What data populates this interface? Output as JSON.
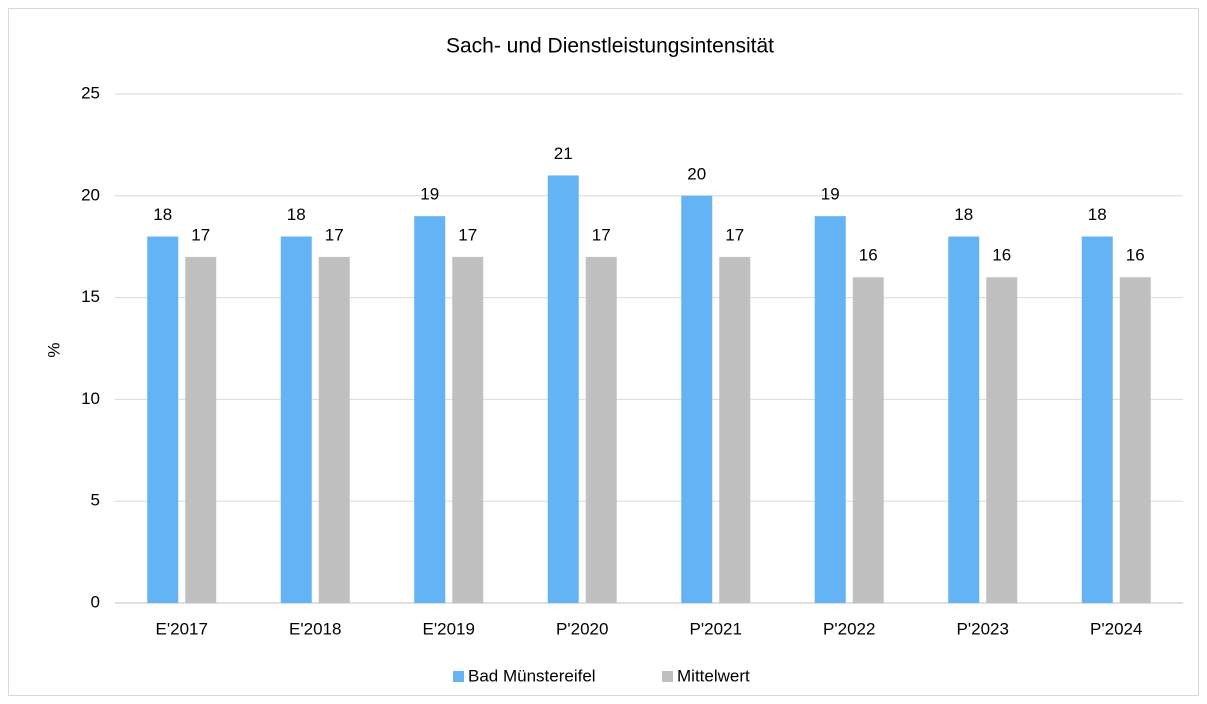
{
  "chart_data": {
    "type": "bar",
    "title": "Sach- und Dienstleistungsintensität",
    "y_label": "%",
    "categories": [
      "E'2017",
      "E'2018",
      "E'2019",
      "P'2020",
      "P'2021",
      "P'2022",
      "P'2023",
      "P'2024"
    ],
    "series": [
      {
        "name": "Bad Münstereifel",
        "color": "#63b3f5",
        "values": [
          18,
          18,
          19,
          21,
          20,
          19,
          18,
          18
        ]
      },
      {
        "name": "Mittelwert",
        "color": "#c0c0c0",
        "values": [
          17,
          17,
          17,
          17,
          17,
          16,
          16,
          16
        ]
      }
    ],
    "ylim": [
      0,
      25
    ],
    "yticks": [
      0,
      5,
      10,
      15,
      20,
      25
    ],
    "grid": true,
    "legend": "bottom"
  }
}
